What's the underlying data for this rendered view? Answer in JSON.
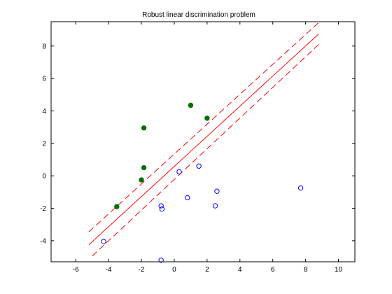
{
  "chart_data": {
    "type": "scatter",
    "title": "Robust linear discrimination problem",
    "xlabel": "",
    "ylabel": "",
    "xlim": [
      -7.5,
      11
    ],
    "ylim": [
      -5.3,
      9.5
    ],
    "x_ticks": [
      -6,
      -4,
      -2,
      0,
      2,
      4,
      6,
      8,
      10
    ],
    "y_ticks": [
      -4,
      -2,
      0,
      2,
      4,
      6,
      8
    ],
    "grid": false,
    "legend": "none",
    "series": [
      {
        "marker": "filled-circle",
        "color": "#007000",
        "points": [
          {
            "x": -3.5,
            "y": -1.9
          },
          {
            "x": -2.0,
            "y": -0.25
          },
          {
            "x": -1.85,
            "y": 0.5
          },
          {
            "x": -1.85,
            "y": 2.95
          },
          {
            "x": 1.0,
            "y": 4.35
          },
          {
            "x": 2.0,
            "y": 3.55
          }
        ]
      },
      {
        "marker": "open-circle",
        "color": "#0000ff",
        "points": [
          {
            "x": -4.3,
            "y": -4.05
          },
          {
            "x": -0.8,
            "y": -1.85
          },
          {
            "x": -0.75,
            "y": -2.05
          },
          {
            "x": -0.8,
            "y": -5.2
          },
          {
            "x": 0.3,
            "y": 0.25
          },
          {
            "x": 0.8,
            "y": -1.35
          },
          {
            "x": 1.5,
            "y": 0.6
          },
          {
            "x": 2.5,
            "y": -1.85
          },
          {
            "x": 2.6,
            "y": -0.95
          },
          {
            "x": 7.7,
            "y": -0.75
          }
        ]
      }
    ],
    "lines": [
      {
        "style": "solid",
        "color": "#ff0000",
        "x": [
          -5.2,
          8.8
        ],
        "y": [
          -4.25,
          8.75
        ]
      },
      {
        "style": "dashed",
        "color": "#ff0000",
        "x": [
          -5.2,
          8.8
        ],
        "y": [
          -3.45,
          9.45
        ]
      },
      {
        "style": "dashed",
        "color": "#ff0000",
        "x": [
          -5.0,
          8.8
        ],
        "y": [
          -4.95,
          8.1
        ]
      }
    ]
  }
}
